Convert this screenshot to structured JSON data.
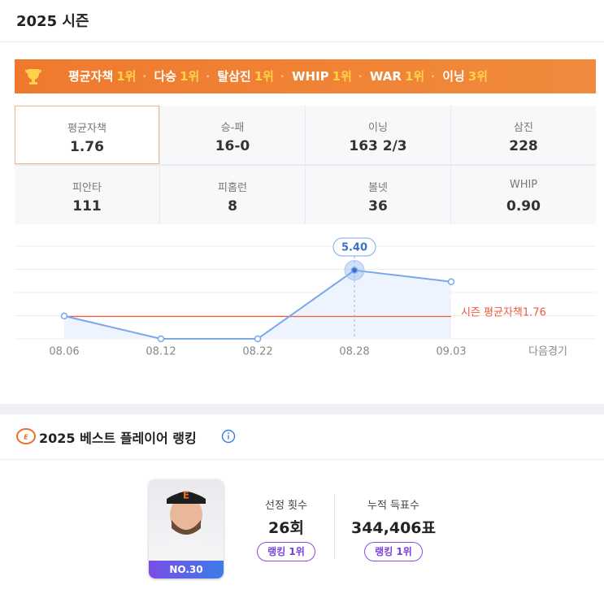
{
  "header": {
    "title": "2025 시즌"
  },
  "banner": {
    "items": [
      {
        "label": "평균자책",
        "rank": "1위"
      },
      {
        "label": "다승",
        "rank": "1위"
      },
      {
        "label": "탈삼진",
        "rank": "1위"
      },
      {
        "label": "WHIP",
        "rank": "1위"
      },
      {
        "label": "WAR",
        "rank": "1위"
      },
      {
        "label": "이닝",
        "rank": "3위"
      }
    ]
  },
  "stats": [
    {
      "label": "평균자책",
      "value": "1.76"
    },
    {
      "label": "승-패",
      "value": "16-0"
    },
    {
      "label": "이닝",
      "value": "163 2/3"
    },
    {
      "label": "삼진",
      "value": "228"
    },
    {
      "label": "피안타",
      "value": "111"
    },
    {
      "label": "피홈런",
      "value": "8"
    },
    {
      "label": "볼넷",
      "value": "36"
    },
    {
      "label": "WHIP",
      "value": "0.90"
    }
  ],
  "chart_data": {
    "type": "line",
    "categories": [
      "08.06",
      "08.12",
      "08.22",
      "08.28",
      "09.03",
      "다음경기"
    ],
    "values": [
      1.8,
      0,
      0,
      5.4,
      4.5,
      null
    ],
    "value_labels": [
      null,
      null,
      null,
      "5.40",
      null,
      null
    ],
    "color": "#7aa7ec",
    "ylim": [
      0,
      7.3
    ],
    "reference_line": {
      "label": "시즌 평균자책",
      "value": 1.76,
      "color": "#ee5a3a"
    }
  },
  "ranking": {
    "title": "2025 베스트 플레이어 랭킹",
    "player_number": "NO.30",
    "stats": [
      {
        "label": "선정 횟수",
        "value": "26회",
        "rank": "랭킹 1위"
      },
      {
        "label": "누적 득표수",
        "value": "344,406표",
        "rank": "랭킹 1위"
      }
    ]
  }
}
